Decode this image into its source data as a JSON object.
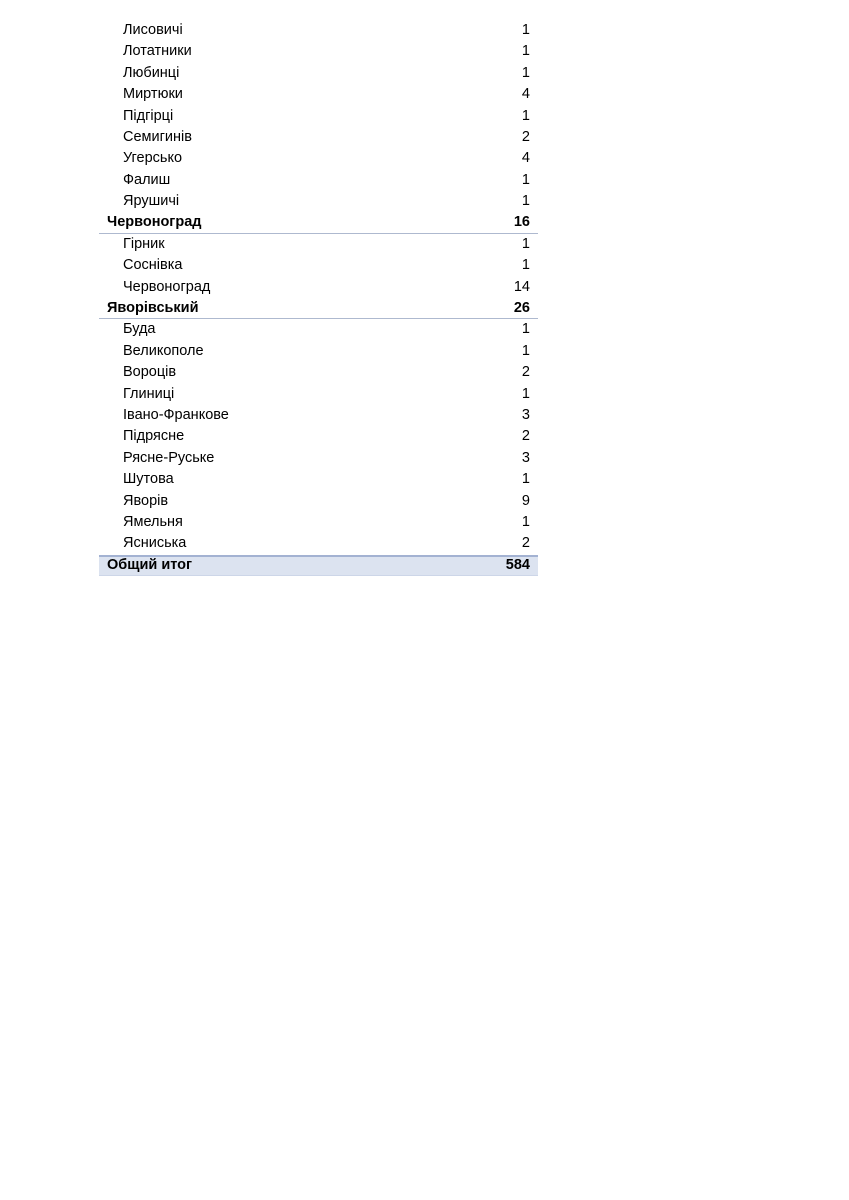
{
  "document": {
    "language": "uk/ru",
    "description_colors": {
      "page_background": "#ffffff",
      "text": "#000000",
      "group_underline": "#aeb9cf",
      "total_row_background": "#dce3f0",
      "total_row_top_border": "#a3b2d2"
    }
  },
  "table": {
    "rows": [
      {
        "type": "item",
        "label": "Лисовичі",
        "value": "1"
      },
      {
        "type": "item",
        "label": "Лотатники",
        "value": "1"
      },
      {
        "type": "item",
        "label": "Любинці",
        "value": "1"
      },
      {
        "type": "item",
        "label": "Миртюки",
        "value": "4"
      },
      {
        "type": "item",
        "label": "Підгірці",
        "value": "1"
      },
      {
        "type": "item",
        "label": "Семигинів",
        "value": "2"
      },
      {
        "type": "item",
        "label": "Угерсько",
        "value": "4"
      },
      {
        "type": "item",
        "label": "Фалиш",
        "value": "1"
      },
      {
        "type": "item",
        "label": "Ярушичі",
        "value": "1"
      },
      {
        "type": "group",
        "label": "Червоноград",
        "value": "16"
      },
      {
        "type": "item",
        "label": "Гірник",
        "value": "1"
      },
      {
        "type": "item",
        "label": "Соснівка",
        "value": "1"
      },
      {
        "type": "item",
        "label": "Червоноград",
        "value": "14"
      },
      {
        "type": "group",
        "label": "Яворівський",
        "value": "26"
      },
      {
        "type": "item",
        "label": "Буда",
        "value": "1"
      },
      {
        "type": "item",
        "label": "Великополе",
        "value": "1"
      },
      {
        "type": "item",
        "label": "Вороців",
        "value": "2"
      },
      {
        "type": "item",
        "label": "Глиниці",
        "value": "1"
      },
      {
        "type": "item",
        "label": "Івано-Франкове",
        "value": "3"
      },
      {
        "type": "item",
        "label": "Підрясне",
        "value": "2"
      },
      {
        "type": "item",
        "label": "Рясне-Руське",
        "value": "3"
      },
      {
        "type": "item",
        "label": "Шутова",
        "value": "1"
      },
      {
        "type": "item",
        "label": "Яворів",
        "value": "9"
      },
      {
        "type": "item",
        "label": "Ямельня",
        "value": "1"
      },
      {
        "type": "item",
        "label": "Ясниська",
        "value": "2"
      },
      {
        "type": "total",
        "label": "Общий итог",
        "value": "584"
      }
    ]
  }
}
